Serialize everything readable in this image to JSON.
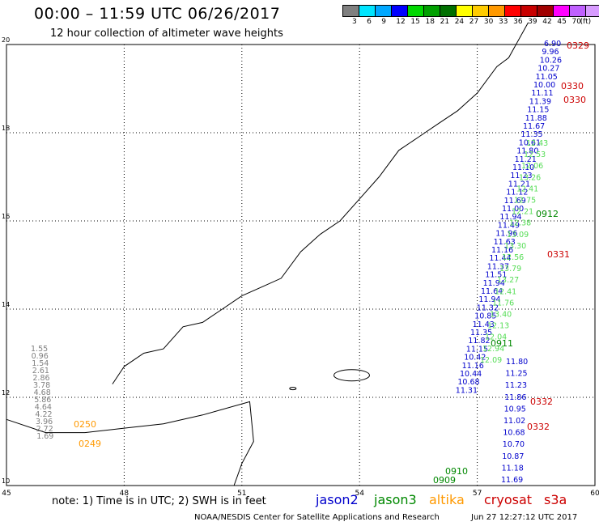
{
  "header": {
    "title": "00:00 – 11:59 UTC 06/26/2017",
    "subtitle": "12 hour collection of altimeter wave heights"
  },
  "legend": {
    "colors": [
      "#808080",
      "#00e5ff",
      "#00a8ff",
      "#0000ff",
      "#00d800",
      "#00a000",
      "#007000",
      "#ffff00",
      "#ffcc00",
      "#ff9900",
      "#ff0000",
      "#c80000",
      "#a00000",
      "#ff00ff",
      "#c060ff",
      "#d89cff",
      "#000000"
    ],
    "labels": [
      "3",
      "6",
      "9",
      "12",
      "15",
      "18",
      "21",
      "24",
      "27",
      "30",
      "33",
      "36",
      "39",
      "42",
      "45",
      "70",
      "(ft)"
    ]
  },
  "axes": {
    "x_ticks": [
      "45",
      "48",
      "51",
      "54",
      "57",
      "60"
    ],
    "y_ticks": [
      "10",
      "12",
      "14",
      "16",
      "18",
      "20"
    ]
  },
  "footer": {
    "note": "note:  1) Time is in UTC; 2) SWH is in feet",
    "satellites": [
      {
        "name": "jason2",
        "color": "#0000cc"
      },
      {
        "name": "jason3",
        "color": "#008800"
      },
      {
        "name": "altika",
        "color": "#ff9900"
      },
      {
        "name": "cryosat",
        "color": "#cc0000"
      },
      {
        "name": "s3a",
        "color": "#cc0000"
      }
    ],
    "credit": "NOAA/NESDIS Center for Satellite Applications and Research",
    "stamp": "Jun 27 12:27:12 UTC 2017"
  },
  "map_data": {
    "lon_range": [
      45,
      60
    ],
    "lat_range": [
      10,
      20
    ],
    "coastline": [
      [
        47.7,
        12.3
      ],
      [
        48,
        12.7
      ],
      [
        48.5,
        13.0
      ],
      [
        49,
        13.1
      ],
      [
        49.5,
        13.6
      ],
      [
        50,
        13.7
      ],
      [
        50.5,
        14.0
      ],
      [
        51,
        14.3
      ],
      [
        51.5,
        14.5
      ],
      [
        52,
        14.7
      ],
      [
        52.5,
        15.3
      ],
      [
        53,
        15.7
      ],
      [
        53.5,
        16.0
      ],
      [
        54,
        16.5
      ],
      [
        54.5,
        17.0
      ],
      [
        55,
        17.6
      ],
      [
        55.5,
        17.9
      ],
      [
        56,
        18.2
      ],
      [
        56.5,
        18.5
      ],
      [
        57,
        18.9
      ],
      [
        57.5,
        19.5
      ],
      [
        57.8,
        19.7
      ],
      [
        58.3,
        20.5
      ]
    ],
    "clusters": [
      {
        "sat": "jason2",
        "color": "#0000cc",
        "values": [
          "6.90",
          "9.96",
          "10.26",
          "10.27",
          "11.05",
          "10.00",
          "11.11",
          "11.39",
          "11.15",
          "11.88",
          "11.67",
          "11.35",
          "10.61",
          "11.80",
          "11.21",
          "11.10",
          "11.23",
          "11.21",
          "11.12",
          "11.69",
          "11.00",
          "11.94",
          "11.49",
          "11.96",
          "11.63",
          "11.16",
          "11.44",
          "11.37",
          "11.51",
          "11.94",
          "11.64",
          "11.94",
          "11.32",
          "10.85",
          "11.43",
          "11.35",
          "11.82",
          "11.15",
          "10.42",
          "11.16",
          "10.44",
          "10.68",
          "11.31",
          "11.80",
          "11.25",
          "11.23",
          "11.86",
          "10.95",
          "11.02",
          "10.68",
          "10.70",
          "10.87",
          "11.18",
          "11.69"
        ]
      },
      {
        "sat": "jason3",
        "color": "#55dd55",
        "values": [
          "12.43",
          "12.53",
          "12.06",
          "13.26",
          "12.41",
          "12.75",
          "12.21",
          "12.38",
          "13.09",
          "13.30",
          "12.56",
          "13.79",
          "13.27",
          "12.41",
          "11.76",
          "13.40",
          "12.13",
          "12.04",
          "12.94",
          "12.09"
        ]
      },
      {
        "sat": "jason3-passes",
        "color": "#008800",
        "values": [
          "0912",
          "0911",
          "0910",
          "0909"
        ]
      },
      {
        "sat": "altika",
        "color": "#ff9900",
        "values": [
          "0250",
          "0249"
        ]
      },
      {
        "sat": "cryosat",
        "color": "#cc0000",
        "values": [
          "0329",
          "0330",
          "0330",
          "0331",
          "0332",
          "0332"
        ]
      },
      {
        "sat": "mixed-west",
        "color": "#808080",
        "values": [
          "1.55",
          "0.96",
          "1.54",
          "2.61",
          "2.86",
          "3.78",
          "4.68",
          "5.86",
          "4.64",
          "4.22",
          "3.96",
          "2.72",
          "1.69"
        ]
      }
    ]
  }
}
